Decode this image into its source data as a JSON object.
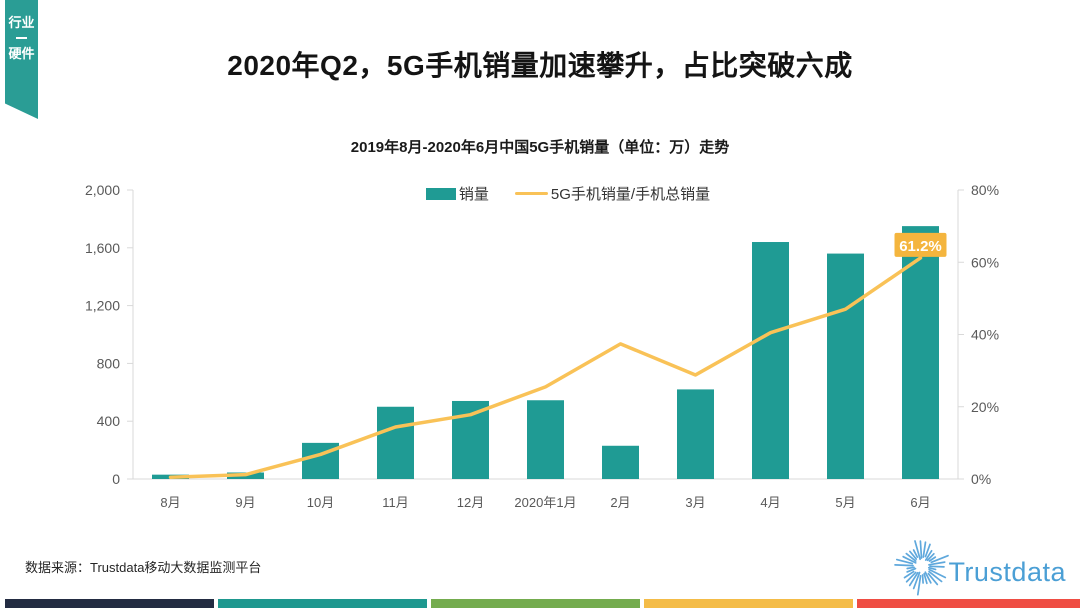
{
  "ribbon": {
    "line1": "行业",
    "line2": "硬件"
  },
  "title": "2020年Q2，5G手机销量加速攀升，占比突破六成",
  "chart_data": {
    "type": "combo-bar-line",
    "title": "2019年8月-2020年6月中国5G手机销量（单位：万）走势",
    "categories": [
      "8月",
      "9月",
      "10月",
      "11月",
      "12月",
      "2020年1月",
      "2月",
      "3月",
      "4月",
      "5月",
      "6月"
    ],
    "series": [
      {
        "name": "销量",
        "type": "bar",
        "axis": "left",
        "color": "#1F9B94",
        "values": [
          30,
          45,
          250,
          500,
          540,
          545,
          230,
          620,
          1640,
          1560,
          1750
        ]
      },
      {
        "name": "5G手机销量/手机总销量",
        "type": "line",
        "axis": "right",
        "color": "#F9C257",
        "values": [
          0.5,
          1.2,
          6.8,
          14.4,
          17.8,
          25.5,
          37.4,
          28.8,
          40.5,
          47.0,
          61.2
        ]
      }
    ],
    "left_axis": {
      "min": 0,
      "max": 2000,
      "ticks": [
        "0",
        "400",
        "800",
        "1,200",
        "1,600",
        "2,000"
      ]
    },
    "right_axis": {
      "min": 0,
      "max": 80,
      "ticks": [
        "0%",
        "20%",
        "40%",
        "60%",
        "80%"
      ]
    },
    "annotation": {
      "text": "61.2%",
      "category": "6月",
      "box_color": "#F4B53E",
      "text_color": "#FFFFFF"
    },
    "legend_position": "top",
    "grid": false,
    "axis_color": "#D9D9D9",
    "axis_text_color": "#595959"
  },
  "footer": {
    "source": "数据来源：Trustdata移动大数据监测平台",
    "logo_text": "Trustdata",
    "logo_color": "#4B9FD5"
  },
  "bottom_strip": {
    "colors": [
      "#232C42",
      "#1E988F",
      "#74AC4E",
      "#F4BC48",
      "#EF4D43"
    ]
  }
}
